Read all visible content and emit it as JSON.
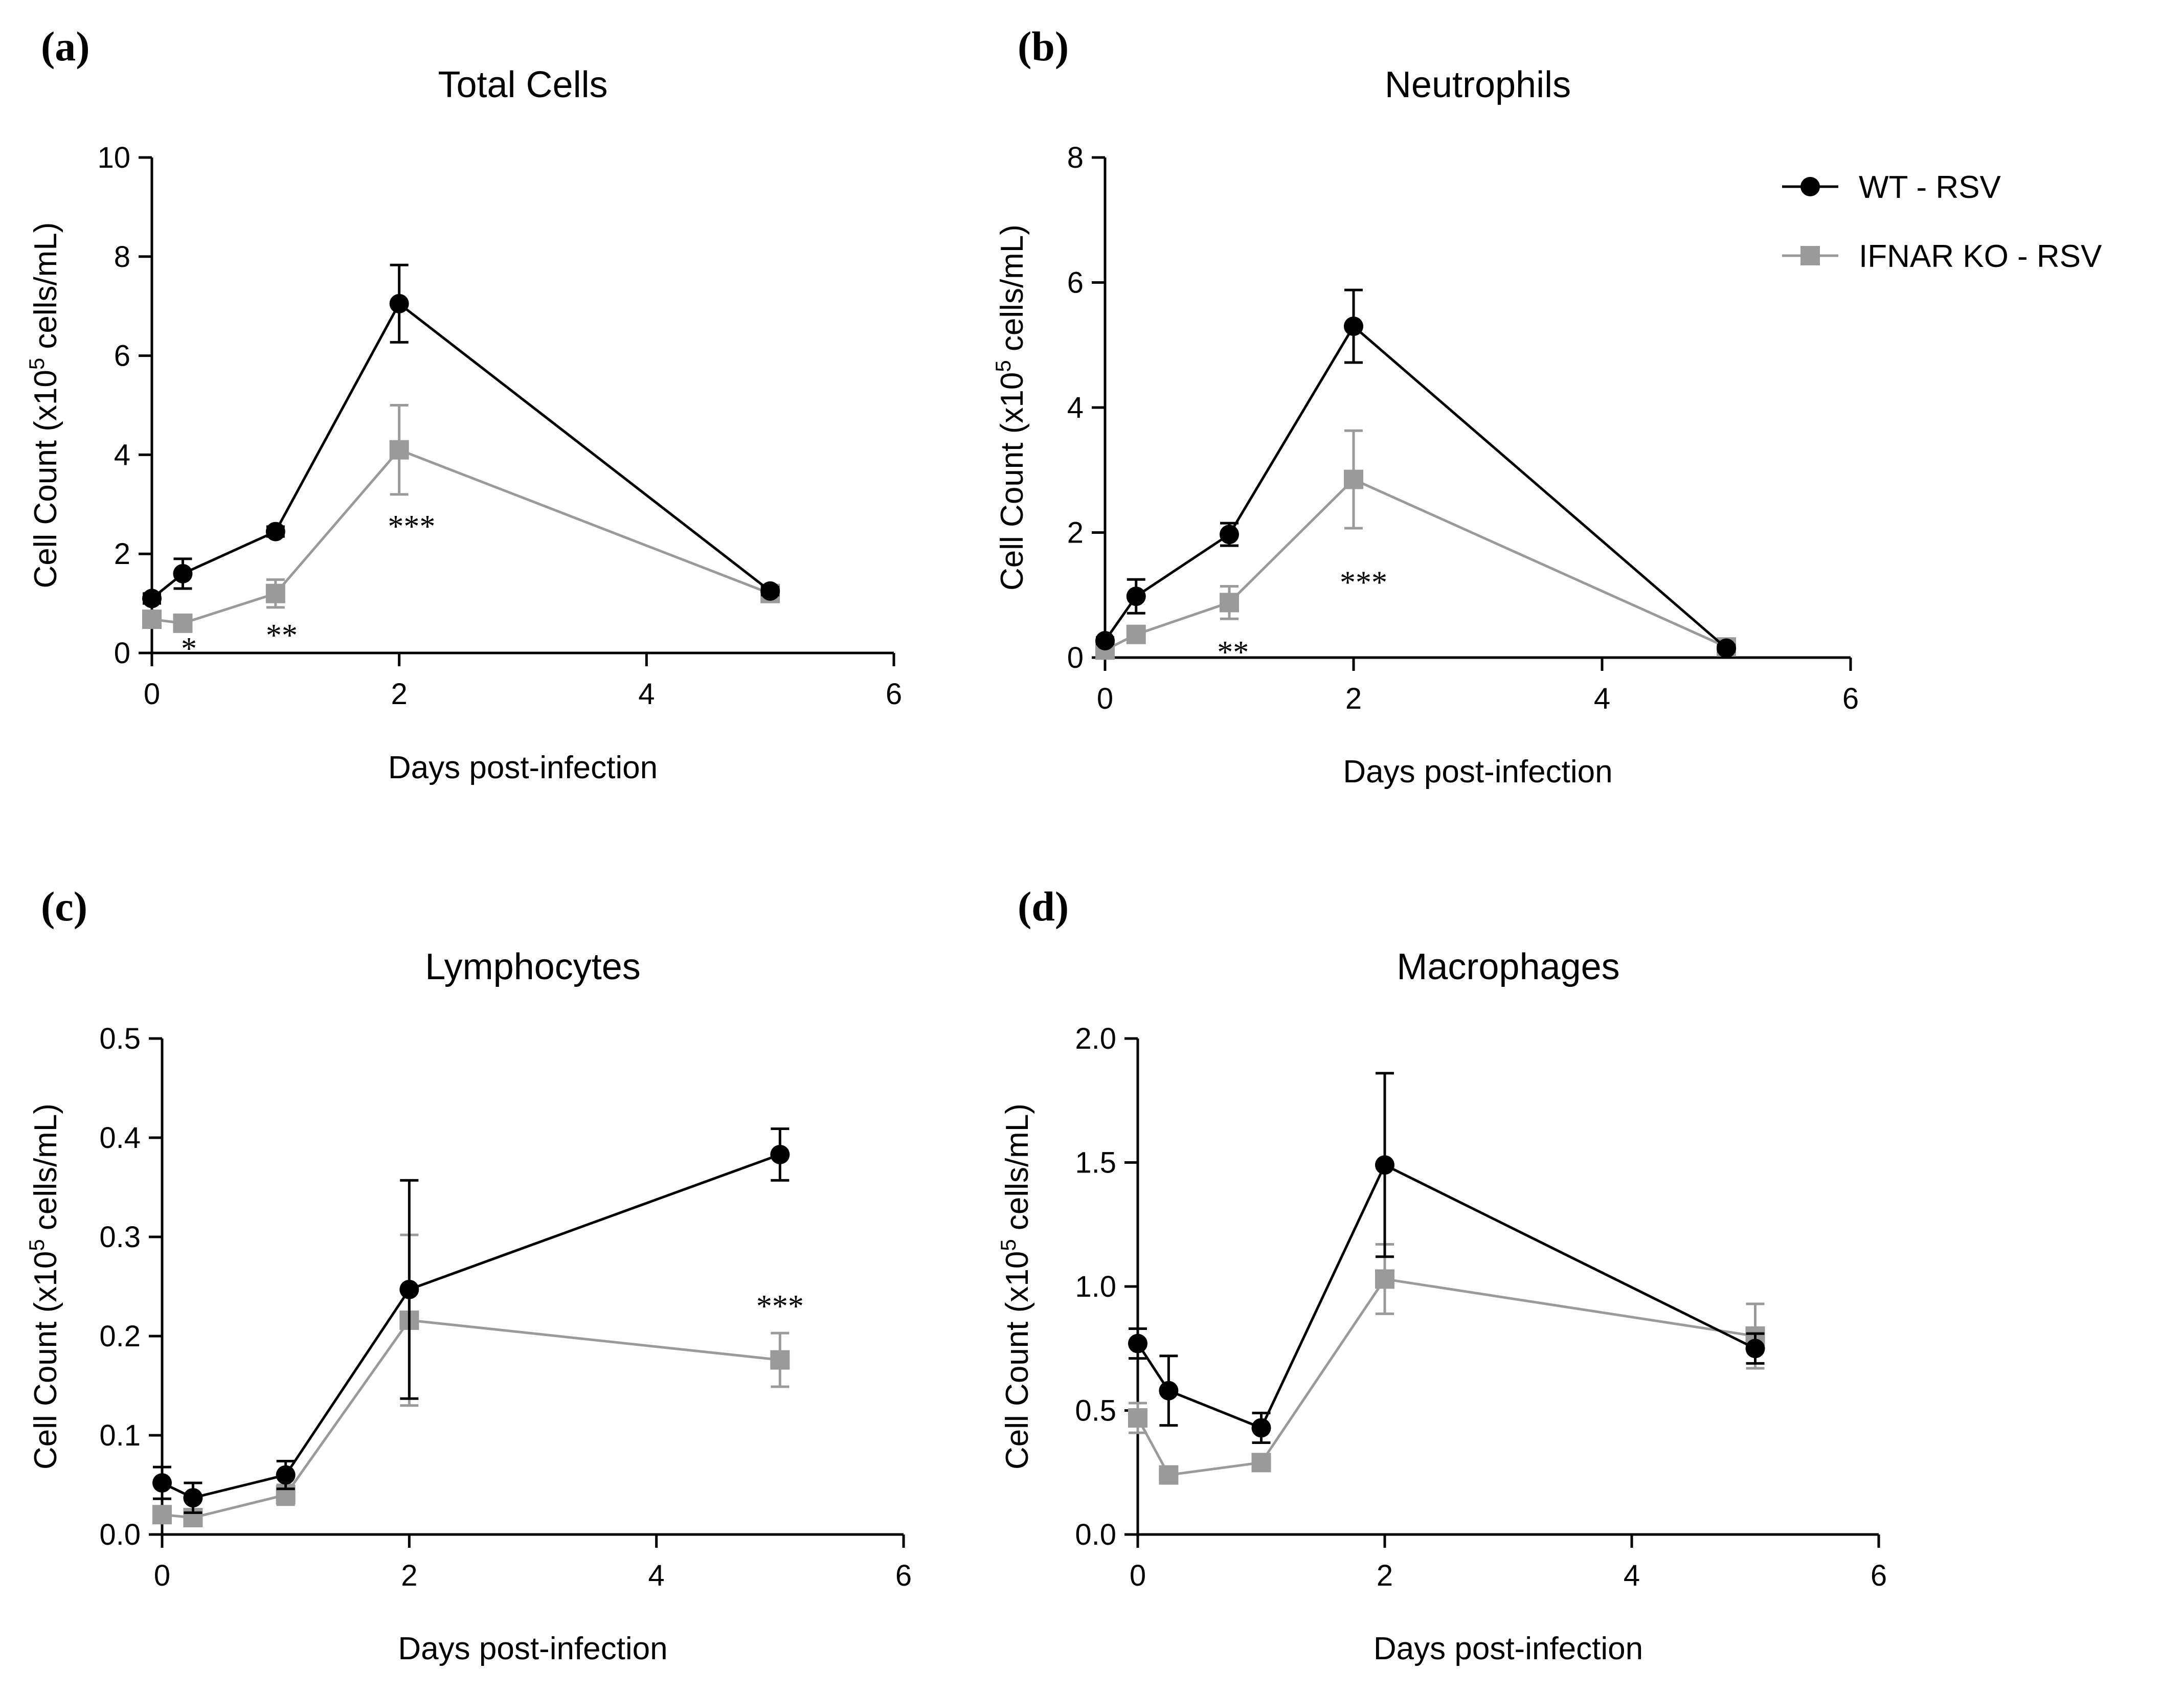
{
  "legend": {
    "position": "top-right",
    "entries": [
      {
        "name": "WT - RSV",
        "color": "#000000",
        "marker": "circle"
      },
      {
        "name": "IFNAR KO - RSV",
        "color": "#9a9a9a",
        "marker": "square"
      }
    ]
  },
  "chart_data": [
    {
      "panel": "(a)",
      "type": "line",
      "title": "Total Cells",
      "xlabel": "Days post-infection",
      "ylabel_main": "Cell Count (x10",
      "ylabel_sup": "5",
      "ylabel_tail": " cells/mL)",
      "xlim": [
        0,
        6
      ],
      "ylim": [
        0,
        10
      ],
      "xticks": [
        0,
        2,
        4,
        6
      ],
      "xtick_labels": [
        "0",
        "2",
        "4",
        "6"
      ],
      "yticks": [
        0,
        2,
        4,
        6,
        8,
        10
      ],
      "ytick_labels": [
        "0",
        "2",
        "4",
        "6",
        "8",
        "10"
      ],
      "series": [
        {
          "name": "WT - RSV",
          "x": [
            0,
            0.25,
            1,
            2,
            5
          ],
          "y": [
            1.1,
            1.6,
            2.45,
            7.05,
            1.25
          ],
          "err": [
            0.1,
            0.3,
            0.1,
            0.78,
            0.08
          ]
        },
        {
          "name": "IFNAR KO - RSV",
          "x": [
            0,
            0.25,
            1,
            2,
            5
          ],
          "y": [
            0.68,
            0.6,
            1.2,
            4.1,
            1.2
          ],
          "err": [
            0.08,
            0.1,
            0.28,
            0.9,
            0.1
          ]
        }
      ],
      "annotations": [
        {
          "text": "*",
          "x": 0.3,
          "y": 0.08
        },
        {
          "text": "**",
          "x": 1.05,
          "y": 0.35
        },
        {
          "text": "***",
          "x": 2.1,
          "y": 2.55
        }
      ]
    },
    {
      "panel": "(b)",
      "type": "line",
      "title": "Neutrophils",
      "xlabel": "Days post-infection",
      "ylabel_main": "Cell Count (x10",
      "ylabel_sup": "5",
      "ylabel_tail": " cells/mL)",
      "xlim": [
        0,
        6
      ],
      "ylim": [
        0,
        8
      ],
      "xticks": [
        0,
        2,
        4,
        6
      ],
      "xtick_labels": [
        "0",
        "2",
        "4",
        "6"
      ],
      "yticks": [
        0,
        2,
        4,
        6,
        8
      ],
      "ytick_labels": [
        "0",
        "2",
        "4",
        "6",
        "8"
      ],
      "series": [
        {
          "name": "WT - RSV",
          "x": [
            0,
            0.25,
            1,
            2,
            5
          ],
          "y": [
            0.27,
            0.98,
            1.97,
            5.3,
            0.15
          ],
          "err": [
            0.05,
            0.27,
            0.18,
            0.58,
            0.05
          ]
        },
        {
          "name": "IFNAR KO - RSV",
          "x": [
            0,
            0.25,
            1,
            2,
            5
          ],
          "y": [
            0.12,
            0.37,
            0.88,
            2.85,
            0.17
          ],
          "err": [
            0.05,
            0.1,
            0.26,
            0.78,
            0.08
          ]
        }
      ],
      "annotations": [
        {
          "text": "**",
          "x": 1.03,
          "y": 0.08
        },
        {
          "text": "***",
          "x": 2.08,
          "y": 1.2
        }
      ]
    },
    {
      "panel": "(c)",
      "type": "line",
      "title": "Lymphocytes",
      "xlabel": "Days post-infection",
      "ylabel_main": "Cell Count (x10",
      "ylabel_sup": "5",
      "ylabel_tail": " cells/mL)",
      "xlim": [
        0,
        6
      ],
      "ylim": [
        0,
        0.5
      ],
      "xticks": [
        0,
        2,
        4,
        6
      ],
      "xtick_labels": [
        "0",
        "2",
        "4",
        "6"
      ],
      "yticks": [
        0,
        0.1,
        0.2,
        0.3,
        0.4,
        0.5
      ],
      "ytick_labels": [
        "0.0",
        "0.1",
        "0.2",
        "0.3",
        "0.4",
        "0.5"
      ],
      "series": [
        {
          "name": "WT - RSV",
          "x": [
            0,
            0.25,
            1,
            2,
            5
          ],
          "y": [
            0.052,
            0.037,
            0.06,
            0.247,
            0.383
          ],
          "err": [
            0.016,
            0.015,
            0.014,
            0.11,
            0.026
          ]
        },
        {
          "name": "IFNAR KO - RSV",
          "x": [
            0,
            0.25,
            1,
            2,
            5
          ],
          "y": [
            0.02,
            0.017,
            0.04,
            0.216,
            0.176
          ],
          "err": [
            0.008,
            0.006,
            0.01,
            0.086,
            0.027
          ]
        }
      ],
      "annotations": [
        {
          "text": "***",
          "x": 5.0,
          "y": 0.23
        }
      ]
    },
    {
      "panel": "(d)",
      "type": "line",
      "title": "Macrophages",
      "xlabel": "Days post-infection",
      "ylabel_main": "Cell Count (x10",
      "ylabel_sup": "5",
      "ylabel_tail": " cells/mL)",
      "xlim": [
        0,
        6
      ],
      "ylim": [
        0,
        2.0
      ],
      "xticks": [
        0,
        2,
        4,
        6
      ],
      "xtick_labels": [
        "0",
        "2",
        "4",
        "6"
      ],
      "yticks": [
        0,
        0.5,
        1.0,
        1.5,
        2.0
      ],
      "ytick_labels": [
        "0.0",
        "0.5",
        "1.0",
        "1.5",
        "2.0"
      ],
      "series": [
        {
          "name": "WT - RSV",
          "x": [
            0,
            0.25,
            1,
            2,
            5
          ],
          "y": [
            0.77,
            0.58,
            0.43,
            1.49,
            0.75
          ],
          "err": [
            0.06,
            0.14,
            0.06,
            0.37,
            0.06
          ]
        },
        {
          "name": "IFNAR KO - RSV",
          "x": [
            0,
            0.25,
            1,
            2,
            5
          ],
          "y": [
            0.47,
            0.24,
            0.29,
            1.03,
            0.8
          ],
          "err": [
            0.06,
            0.02,
            0.03,
            0.14,
            0.13
          ]
        }
      ],
      "annotations": []
    }
  ]
}
